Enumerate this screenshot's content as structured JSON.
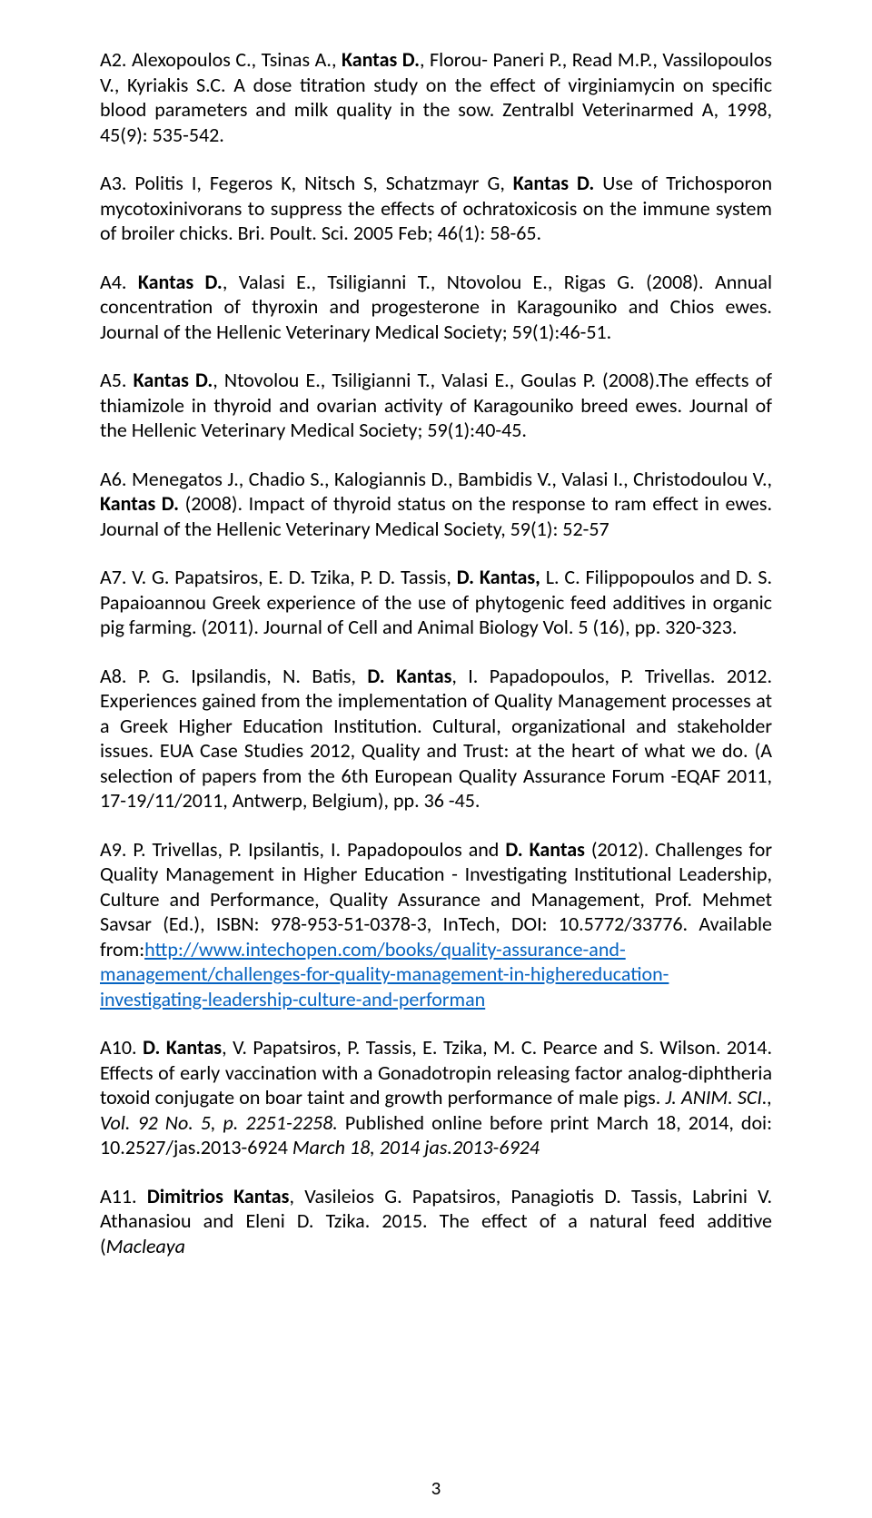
{
  "page_number": "3",
  "entries": [
    {
      "id": "a2",
      "parts": [
        {
          "t": "A2. Alexopoulos C., Tsinas A., "
        },
        {
          "t": "Kantas D.",
          "b": true
        },
        {
          "t": ", Florou- Paneri P., Read M.P., Vassilopoulos V., Kyriakis S.C. A dose titration study on the effect of virginiamycin on specific blood parameters and milk quality in the sow. Zentralbl Veterinarmed A, 1998, 45(9): 535-542."
        }
      ]
    },
    {
      "id": "a3",
      "parts": [
        {
          "t": "A3. Politis I, Fegeros K, Nitsch S, Schatzmayr G, "
        },
        {
          "t": "Kantas D.",
          "b": true
        },
        {
          "t": " Use of Trichosporon mycotoxinivorans to suppress the effects of ochratoxicosis on the immune system of broiler chicks. Bri. Poult. Sci. 2005 Feb; 46(1): 58-65."
        }
      ]
    },
    {
      "id": "a4",
      "parts": [
        {
          "t": "A4. "
        },
        {
          "t": "Kantas D.",
          "b": true
        },
        {
          "t": ", Valasi E., Tsiligianni T., Ntovolou E., Rigas G. (2008). Annual concentration of thyroxin and progesterone in Karagouniko and Chios ewes. Journal of the Hellenic Veterinary Medical Society; 59(1):46-51."
        }
      ]
    },
    {
      "id": "a5",
      "parts": [
        {
          "t": "A5. "
        },
        {
          "t": "Kantas D.",
          "b": true
        },
        {
          "t": ", Ntovolou E., Tsiligianni T., Valasi E., Goulas P. (2008).The effects of thiamizole in thyroid and ovarian activity of Karagouniko breed ewes. Journal of the Hellenic Veterinary Medical Society; 59(1):40-45."
        }
      ]
    },
    {
      "id": "a6",
      "parts": [
        {
          "t": "A6. Menegatos J., Chadio S., Kalogiannis D., Bambidis V., Valasi I., Christodoulou V., "
        },
        {
          "t": "Kantas D.",
          "b": true
        },
        {
          "t": " (2008). Impact of thyroid status on the response to ram effect in ewes. Journal of the Hellenic Veterinary Medical Society, 59(1): 52-57"
        }
      ]
    },
    {
      "id": "a7",
      "parts": [
        {
          "t": "A7. V. G. Papatsiros, E. D. Tzika, P. D. Tassis, "
        },
        {
          "t": "D. Kantas,",
          "b": true
        },
        {
          "t": " L. C. Filippopoulos and D. S. Papaioannou Greek experience of the use of phytogenic feed additives in organic pig farming. (2011). Journal of Cell and Animal Biology Vol. 5 (16), pp. 320-323."
        }
      ]
    },
    {
      "id": "a8",
      "parts": [
        {
          "t": "A8. P. G. Ipsilandis, N. Batis, "
        },
        {
          "t": "D. Kantas",
          "b": true
        },
        {
          "t": ", I. Papadopoulos, P. Trivellas. 2012. Experiences gained from the implementation of Quality Management processes at a Greek Higher Education Institution. Cultural, organizational and stakeholder issues. EUA Case Studies 2012, Quality and Trust: at the heart of what we do. (A selection of papers from the 6th European Quality Assurance Forum -EQAF 2011, 17-19/11/2011, Antwerp, Belgium), pp. 36 -45."
        }
      ]
    },
    {
      "id": "a9",
      "parts": [
        {
          "t": "A9. P. Trivellas, P. Ipsilantis, I. Papadopoulos and "
        },
        {
          "t": "D. Kantas",
          "b": true
        },
        {
          "t": " (2012). Challenges for Quality Management in Higher Education - Investigating Institutional Leadership, Culture and Performance, Quality Assurance and Management, Prof. Mehmet Savsar (Ed.), ISBN: 978-953-51-0378-3, InTech, DOI: 10.5772/33776. Available from:"
        },
        {
          "t": "http://www.intechopen.com/books/quality-assurance-and-management/challenges-for-quality-management-in-highereducation-investigating-leadership-culture-and-performan",
          "link": true
        }
      ]
    },
    {
      "id": "a10",
      "parts": [
        {
          "t": "A10. "
        },
        {
          "t": "D. Kantas",
          "b": true
        },
        {
          "t": ", V. Papatsiros, P. Tassis, E. Tzika, M. C. Pearce and S. Wilson. 2014. Effects of early vaccination with a Gonadotropin releasing factor analog-diphtheria toxoid conjugate on boar taint and growth performance of male pigs. "
        },
        {
          "t": "J. ANIM. SCI., Vol. 92 No. 5, p. 2251-2258.",
          "i": true
        },
        {
          "t": " Published online before print March 18, 2014, doi: 10.2527/jas.2013-6924 "
        },
        {
          "t": "March 18, 2014 jas.2013-6924",
          "i": true
        }
      ]
    },
    {
      "id": "a11",
      "parts": [
        {
          "t": "A11. "
        },
        {
          "t": "Dimitrios Kantas",
          "b": true
        },
        {
          "t": ", Vasileios G. Papatsiros, Panagiotis D. Tassis, Labrini V. Athanasiou and Eleni D. Tzika. 2015. The effect of a natural feed additive ("
        },
        {
          "t": "Macleaya",
          "i": true
        }
      ]
    }
  ]
}
